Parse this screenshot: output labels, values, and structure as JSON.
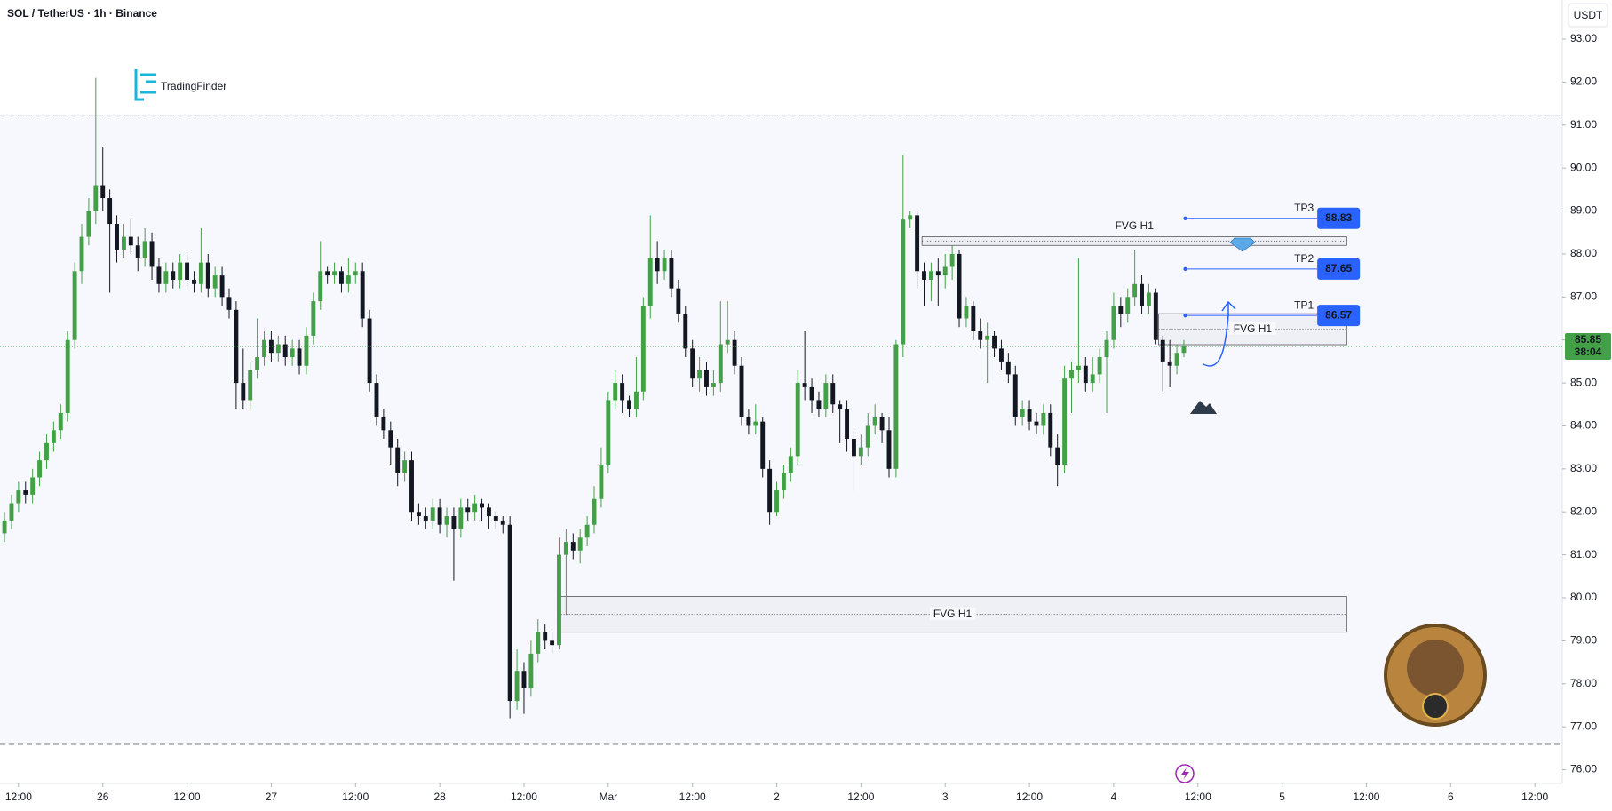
{
  "header": {
    "symbol": "SOL / TetherUS · 1h · Binance",
    "currency": "USDT",
    "logo": "TradingFinder"
  },
  "chart_data": {
    "type": "candlestick",
    "x": [
      -2,
      -1,
      0,
      1,
      2,
      3,
      4,
      5,
      6,
      7,
      8,
      9,
      10,
      11,
      12,
      13,
      14,
      15,
      16,
      17,
      18,
      19,
      20,
      21,
      22,
      23,
      24,
      25,
      26,
      27,
      28,
      29,
      30,
      31,
      32,
      33,
      34,
      35,
      36,
      37,
      38,
      39,
      40,
      41,
      42,
      43,
      44,
      45,
      46,
      47,
      48,
      49,
      50,
      51,
      52,
      53,
      54,
      55,
      56,
      57,
      58,
      59,
      60,
      61,
      62,
      63,
      64,
      65,
      66,
      67,
      68,
      69,
      70,
      71,
      72,
      73,
      74,
      75,
      76,
      77,
      78,
      79,
      80,
      81,
      82,
      83,
      84,
      85,
      86,
      87,
      88,
      89,
      90,
      91,
      92,
      93,
      94,
      95,
      96,
      97,
      98,
      99,
      100,
      101,
      102,
      103,
      104,
      105,
      106,
      107,
      108,
      109,
      110,
      111,
      112,
      113,
      114,
      115,
      116,
      117,
      118,
      119,
      120,
      121,
      122,
      123,
      124,
      125,
      126,
      127,
      128,
      129,
      130,
      131,
      132,
      133,
      134,
      135,
      136,
      137,
      138,
      139,
      140,
      141,
      142,
      143,
      144,
      145,
      146,
      147,
      148,
      149,
      150,
      151,
      152,
      153,
      154,
      155,
      156,
      157,
      158,
      159,
      160,
      161,
      162,
      163,
      164,
      165,
      166
    ],
    "open": [
      81.5,
      81.8,
      82.2,
      82.5,
      82.4,
      82.8,
      83.2,
      83.6,
      83.9,
      84.3,
      86.0,
      87.6,
      88.4,
      89.0,
      89.6,
      89.3,
      88.7,
      88.1,
      88.4,
      88.2,
      87.9,
      88.3,
      87.7,
      87.3,
      87.6,
      87.4,
      87.8,
      87.4,
      87.3,
      87.8,
      87.2,
      87.5,
      87.0,
      86.7,
      85.0,
      84.6,
      85.3,
      85.6,
      86.0,
      85.7,
      85.9,
      85.6,
      85.8,
      85.4,
      86.1,
      86.9,
      87.6,
      87.5,
      87.6,
      87.3,
      87.5,
      87.6,
      86.5,
      85.0,
      84.2,
      83.9,
      83.5,
      82.9,
      83.2,
      82.0,
      81.9,
      81.8,
      82.1,
      81.7,
      81.9,
      81.6,
      82.1,
      82.0,
      82.2,
      82.1,
      81.9,
      81.8,
      81.7,
      77.6,
      78.3,
      77.9,
      78.7,
      79.2,
      79.0,
      78.9,
      81.0,
      81.3,
      81.1,
      81.4,
      81.7,
      82.3,
      83.1,
      84.6,
      85.0,
      84.6,
      84.4,
      84.8,
      86.8,
      87.9,
      87.6,
      87.9,
      87.2,
      86.6,
      85.8,
      85.1,
      85.3,
      84.9,
      85.0,
      85.9,
      86.0,
      85.4,
      84.2,
      84.0,
      84.1,
      83.0,
      82.0,
      82.5,
      82.9,
      83.3,
      85.0,
      84.9,
      84.6,
      84.4,
      85.0,
      84.5,
      84.4,
      83.7,
      83.3,
      83.5,
      84.0,
      84.2,
      83.9,
      83.0,
      85.9,
      88.8,
      88.9,
      87.6,
      87.4,
      87.6,
      87.5,
      87.7,
      88.0,
      86.5,
      86.8,
      86.2,
      86.0,
      86.1,
      85.8,
      85.5,
      85.2,
      84.2,
      84.4,
      84.1,
      84.0,
      84.3,
      83.5,
      83.1,
      85.1,
      85.3,
      85.4,
      85.0,
      85.2,
      85.6,
      86.0,
      86.8,
      86.6,
      87.0,
      87.3,
      86.8,
      87.1,
      86.0,
      85.5,
      85.4,
      85.7
    ],
    "high": [
      82.0,
      82.4,
      82.7,
      82.7,
      83.0,
      83.4,
      83.8,
      84.1,
      84.5,
      86.2,
      87.8,
      88.7,
      89.3,
      92.1,
      90.5,
      89.5,
      88.9,
      88.7,
      88.8,
      88.4,
      88.6,
      88.5,
      87.9,
      87.8,
      87.8,
      88.0,
      88.0,
      87.6,
      88.6,
      88.0,
      87.7,
      87.7,
      87.2,
      86.9,
      85.8,
      85.5,
      86.5,
      86.2,
      86.2,
      86.1,
      86.1,
      86.0,
      86.0,
      86.3,
      87.1,
      88.3,
      87.7,
      87.8,
      87.7,
      87.9,
      87.8,
      87.8,
      86.7,
      85.2,
      84.4,
      84.1,
      83.7,
      83.4,
      83.4,
      82.2,
      82.1,
      82.3,
      82.3,
      82.1,
      82.1,
      82.3,
      82.3,
      82.4,
      82.3,
      82.2,
      82.0,
      81.9,
      81.9,
      78.8,
      78.5,
      79.0,
      79.5,
      79.4,
      79.2,
      81.4,
      81.6,
      81.5,
      81.6,
      81.9,
      82.6,
      83.5,
      84.8,
      85.3,
      85.2,
      84.7,
      85.6,
      87.0,
      88.9,
      88.3,
      88.1,
      88.1,
      87.4,
      86.8,
      86.0,
      85.6,
      85.5,
      85.3,
      86.9,
      86.9,
      86.2,
      85.6,
      84.4,
      84.5,
      84.2,
      83.2,
      82.7,
      83.1,
      83.5,
      85.3,
      86.2,
      85.1,
      84.8,
      85.2,
      85.2,
      84.6,
      84.6,
      83.9,
      83.8,
      84.3,
      84.5,
      84.3,
      84.2,
      86.0,
      90.3,
      89.0,
      89.0,
      87.8,
      87.8,
      87.9,
      88.0,
      88.2,
      88.1,
      87.0,
      86.9,
      86.5,
      86.4,
      86.2,
      86.0,
      85.7,
      85.4,
      84.6,
      84.6,
      84.3,
      84.5,
      84.5,
      83.8,
      85.4,
      85.5,
      87.9,
      85.6,
      85.6,
      85.8,
      86.2,
      87.1,
      87.0,
      87.2,
      88.1,
      87.5,
      87.3,
      87.2,
      86.1,
      86.0,
      85.9,
      86.0
    ],
    "low": [
      81.3,
      81.6,
      82.0,
      82.2,
      82.2,
      82.6,
      83.0,
      83.4,
      83.7,
      84.1,
      85.8,
      87.3,
      88.2,
      88.7,
      89.0,
      87.1,
      87.8,
      87.9,
      88.0,
      87.6,
      87.7,
      87.4,
      87.1,
      87.1,
      87.2,
      87.2,
      87.2,
      87.1,
      87.1,
      87.0,
      87.0,
      86.8,
      86.5,
      84.4,
      84.4,
      84.4,
      85.1,
      85.4,
      85.5,
      85.5,
      85.4,
      85.4,
      85.2,
      85.2,
      85.9,
      86.7,
      87.3,
      87.3,
      87.1,
      87.1,
      87.3,
      86.3,
      84.8,
      84.0,
      83.7,
      83.1,
      82.6,
      82.7,
      81.8,
      81.7,
      81.6,
      81.6,
      81.5,
      81.4,
      80.4,
      81.4,
      81.8,
      81.8,
      81.8,
      81.6,
      81.6,
      81.5,
      77.2,
      77.4,
      77.3,
      77.7,
      78.5,
      78.8,
      78.7,
      78.8,
      79.6,
      80.9,
      80.8,
      81.2,
      81.5,
      82.1,
      82.9,
      84.4,
      84.3,
      84.2,
      84.2,
      84.6,
      86.5,
      87.3,
      87.4,
      87.0,
      86.4,
      85.6,
      84.9,
      84.8,
      84.7,
      84.7,
      84.8,
      85.7,
      85.2,
      84.0,
      83.8,
      83.8,
      82.8,
      81.7,
      81.9,
      82.3,
      82.7,
      83.1,
      84.6,
      84.3,
      84.2,
      84.2,
      84.3,
      83.6,
      83.4,
      82.5,
      83.1,
      83.3,
      83.8,
      83.6,
      82.8,
      82.8,
      85.6,
      88.6,
      87.2,
      86.8,
      86.9,
      86.8,
      87.2,
      87.4,
      86.3,
      86.3,
      86.0,
      85.8,
      85.0,
      85.6,
      85.3,
      85.0,
      84.0,
      84.0,
      83.9,
      83.8,
      83.8,
      83.3,
      82.6,
      82.9,
      84.3,
      85.0,
      84.8,
      84.8,
      85.0,
      84.3,
      85.8,
      86.3,
      86.4,
      86.8,
      86.6,
      86.6,
      85.9,
      84.8,
      84.9,
      85.2,
      85.6
    ],
    "close": [
      81.8,
      82.2,
      82.5,
      82.4,
      82.8,
      83.2,
      83.6,
      83.9,
      84.3,
      86.0,
      87.6,
      88.4,
      89.0,
      89.6,
      89.3,
      88.7,
      88.1,
      88.4,
      88.2,
      87.9,
      88.3,
      87.7,
      87.3,
      87.6,
      87.4,
      87.8,
      87.4,
      87.3,
      87.8,
      87.2,
      87.5,
      87.0,
      86.7,
      85.0,
      84.6,
      85.3,
      85.6,
      86.0,
      85.7,
      85.9,
      85.6,
      85.8,
      85.4,
      86.1,
      86.9,
      87.6,
      87.5,
      87.6,
      87.3,
      87.5,
      87.6,
      86.5,
      85.0,
      84.2,
      83.9,
      83.5,
      82.9,
      83.2,
      82.0,
      81.9,
      81.8,
      82.1,
      81.7,
      81.9,
      81.6,
      82.1,
      82.0,
      82.2,
      82.1,
      81.9,
      81.8,
      81.7,
      77.6,
      78.3,
      77.9,
      78.7,
      79.2,
      79.0,
      78.9,
      81.0,
      81.3,
      81.1,
      81.4,
      81.7,
      82.3,
      83.1,
      84.6,
      85.0,
      84.6,
      84.4,
      84.8,
      86.8,
      87.9,
      87.6,
      87.9,
      87.2,
      86.6,
      85.8,
      85.1,
      85.3,
      84.9,
      85.0,
      85.9,
      86.0,
      85.4,
      84.2,
      84.0,
      84.1,
      83.0,
      82.0,
      82.5,
      82.9,
      83.3,
      85.0,
      84.9,
      84.6,
      84.4,
      85.0,
      84.5,
      84.4,
      83.7,
      83.3,
      83.5,
      84.0,
      84.2,
      83.9,
      83.0,
      85.9,
      88.8,
      88.9,
      87.6,
      87.4,
      87.6,
      87.5,
      87.7,
      88.0,
      86.5,
      86.8,
      86.2,
      86.0,
      86.1,
      85.8,
      85.5,
      85.2,
      84.2,
      84.4,
      84.1,
      84.0,
      84.3,
      83.5,
      83.1,
      85.1,
      85.3,
      85.4,
      85.0,
      85.2,
      85.6,
      86.0,
      86.8,
      86.6,
      87.0,
      87.3,
      86.8,
      87.1,
      86.0,
      85.5,
      85.4,
      85.7,
      85.85
    ],
    "up_color": "#43a047",
    "down_color": "#131722",
    "xlim": [
      -2.64,
      219.9
    ],
    "xticks": [
      {
        "value": 0,
        "label": "12:00"
      },
      {
        "value": 12,
        "label": "26"
      },
      {
        "value": 24,
        "label": "12:00"
      },
      {
        "value": 36,
        "label": "27"
      },
      {
        "value": 48,
        "label": "12:00"
      },
      {
        "value": 60,
        "label": "28"
      },
      {
        "value": 72,
        "label": "12:00"
      },
      {
        "value": 84,
        "label": "Mar"
      },
      {
        "value": 96,
        "label": "12:00"
      },
      {
        "value": 108,
        "label": "2"
      },
      {
        "value": 120,
        "label": "12:00"
      },
      {
        "value": 132,
        "label": "3"
      },
      {
        "value": 144,
        "label": "12:00"
      },
      {
        "value": 156,
        "label": "4"
      },
      {
        "value": 168,
        "label": "12:00"
      },
      {
        "value": 180,
        "label": "5"
      },
      {
        "value": 192,
        "label": "12:00"
      },
      {
        "value": 204,
        "label": "6"
      },
      {
        "value": 216,
        "label": "12:00"
      }
    ],
    "ylim": [
      75.68,
      93.91
    ],
    "yticks": [
      {
        "value": 76,
        "label": "76.00"
      },
      {
        "value": 77,
        "label": "77.00"
      },
      {
        "value": 78,
        "label": "78.00"
      },
      {
        "value": 79,
        "label": "79.00"
      },
      {
        "value": 80,
        "label": "80.00"
      },
      {
        "value": 81,
        "label": "81.00"
      },
      {
        "value": 82,
        "label": "82.00"
      },
      {
        "value": 83,
        "label": "83.00"
      },
      {
        "value": 84,
        "label": "84.00"
      },
      {
        "value": 85,
        "label": "85.00"
      },
      {
        "value": 86,
        "label": "86.00"
      },
      {
        "value": 87,
        "label": "87.00"
      },
      {
        "value": 88,
        "label": "88.00"
      },
      {
        "value": 89,
        "label": "89.00"
      },
      {
        "value": 90,
        "label": "90.00"
      },
      {
        "value": 91,
        "label": "91.00"
      },
      {
        "value": 92,
        "label": "92.00"
      },
      {
        "value": 93,
        "label": "93.00"
      }
    ],
    "last_price": 85.85,
    "countdown": "38:04",
    "levels": [
      91.23,
      76.59
    ],
    "zones": [
      {
        "label": "FVG H1",
        "x": [
          128.7,
          189.2
        ],
        "y": [
          88.2,
          88.4
        ]
      },
      {
        "label": "FVG H1",
        "x": [
          162.4,
          189.2
        ],
        "y": [
          85.89,
          86.61
        ]
      },
      {
        "label": "FVG H1",
        "x": [
          76.9,
          189.2
        ],
        "y": [
          79.2,
          80.03
        ]
      }
    ],
    "targets": [
      {
        "label": "TP3",
        "value": 88.83,
        "x": [
          166.2,
          185
        ]
      },
      {
        "label": "TP2",
        "value": 87.65,
        "x": [
          166.2,
          185
        ]
      },
      {
        "label": "TP1",
        "value": 86.57,
        "x": [
          166.2,
          185
        ]
      }
    ],
    "target_color": "#2962ff"
  }
}
